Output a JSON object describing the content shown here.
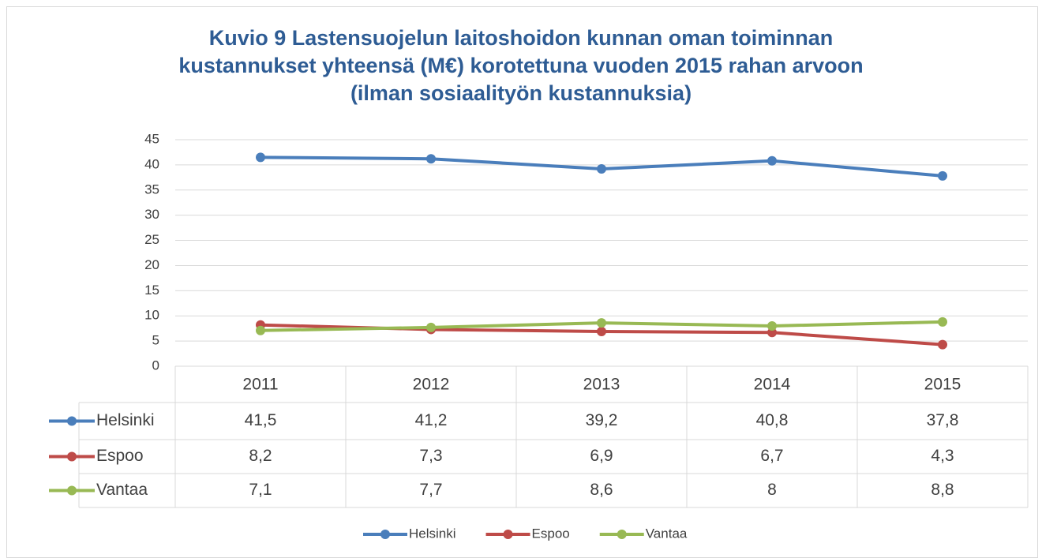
{
  "chart_data": {
    "type": "line",
    "title": [
      "Kuvio 9 Lastensuojelun laitoshoidon kunnan oman toiminnan",
      "kustannukset yhteensä (M€) korotettuna vuoden 2015 rahan arvoon",
      "(ilman sosiaalityön kustannuksia)"
    ],
    "categories": [
      "2011",
      "2012",
      "2013",
      "2014",
      "2015"
    ],
    "series": [
      {
        "name": "Helsinki",
        "color": "#4a7ebb",
        "values": [
          41.5,
          41.2,
          39.2,
          40.8,
          37.8
        ],
        "value_labels": [
          "41,5",
          "41,2",
          "39,2",
          "40,8",
          "37,8"
        ]
      },
      {
        "name": "Espoo",
        "color": "#be4b48",
        "values": [
          8.2,
          7.3,
          6.9,
          6.7,
          4.3
        ],
        "value_labels": [
          "8,2",
          "7,3",
          "6,9",
          "6,7",
          "4,3"
        ]
      },
      {
        "name": "Vantaa",
        "color": "#98b954",
        "values": [
          7.1,
          7.7,
          8.6,
          8,
          8.8
        ],
        "value_labels": [
          "7,1",
          "7,7",
          "8,6",
          "8",
          "8,8"
        ]
      }
    ],
    "ylim": [
      0,
      45
    ],
    "yticks": [
      0,
      5,
      10,
      15,
      20,
      25,
      30,
      35,
      40,
      45
    ],
    "grid": true,
    "legend": "bottom"
  }
}
